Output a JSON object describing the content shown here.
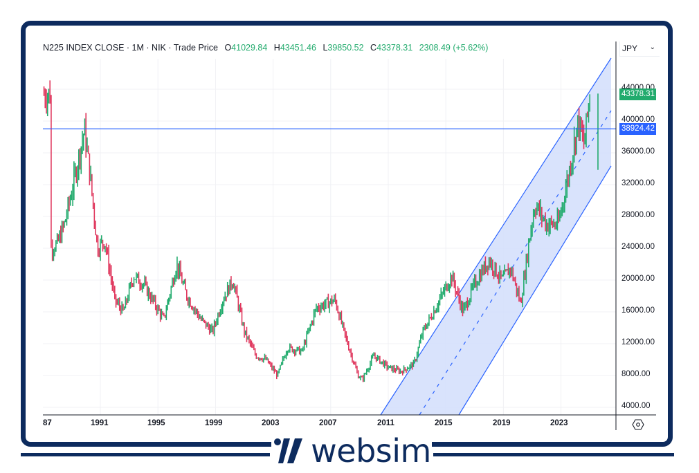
{
  "legend": {
    "symbol": "N225 INDEX CLOSE",
    "interval": "1M",
    "exchange": "NIK",
    "price_type": "Trade Price",
    "open_label": "O",
    "open": "41029.84",
    "high_label": "H",
    "high": "43451.46",
    "low_label": "L",
    "low": "39850.52",
    "close_label": "C",
    "close": "43378.31",
    "change": "2308.49 (+5.62%)"
  },
  "currency": {
    "label": "JPY",
    "chevron": "⌄"
  },
  "price_tags": {
    "last_price": "43378.31",
    "last_price_color": "#22ab6d",
    "hline_price": "38924.42",
    "hline_color": "#2962ff"
  },
  "y_axis": {
    "ticks": [
      "44000.00",
      "40000.00",
      "36000.00",
      "32000.00",
      "28000.00",
      "24000.00",
      "20000.00",
      "16000.00",
      "12000.00",
      "8000.00",
      "4000.00"
    ],
    "tick_values": [
      44000,
      40000,
      36000,
      32000,
      28000,
      24000,
      20000,
      16000,
      12000,
      8000,
      4000
    ]
  },
  "x_axis": {
    "ticks": [
      "87",
      "1991",
      "1995",
      "1999",
      "2003",
      "2007",
      "2011",
      "2015",
      "2019",
      "2023"
    ]
  },
  "brand": {
    "name": "websim"
  },
  "colors": {
    "up": "#22ab6d",
    "down": "#e0385e",
    "channel_line": "#2962ff",
    "channel_fill": "#d2defc",
    "frame": "#0d2b5e",
    "grid": "#f0f1f4"
  },
  "chart_data": {
    "type": "ohlc",
    "title": "N225 INDEX CLOSE · 1M · NIK · Trade Price",
    "xlabel": "",
    "ylabel": "JPY",
    "ylim": [
      3000,
      48000
    ],
    "x_range": [
      "1987",
      "2025"
    ],
    "grid": true,
    "series_anchor_points": {
      "year": [
        1987.5,
        1988,
        1988.5,
        1989,
        1989.9,
        1990.3,
        1990.8,
        1991.3,
        1992,
        1992.6,
        1993.3,
        1994,
        1995.4,
        1996.3,
        1997,
        1998,
        1998.8,
        1999.5,
        2000.2,
        2001,
        2001.8,
        2002.5,
        2003.3,
        2004,
        2005,
        2006,
        2007.3,
        2008,
        2008.9,
        2009.2,
        2010,
        2011,
        2011.9,
        2012.8,
        2013.4,
        2014,
        2015.4,
        2016.2,
        2017,
        2018,
        2018.9,
        2019.5,
        2020.2,
        2020.9,
        2021.2,
        2022,
        2022.8,
        2023.5,
        2024.2,
        2024.6,
        2025
      ],
      "close": [
        24000,
        24500,
        27000,
        31000,
        38916,
        33000,
        24000,
        25000,
        17500,
        16000,
        20500,
        19500,
        15000,
        22000,
        18000,
        15000,
        13500,
        17500,
        20000,
        13500,
        10500,
        10000,
        8000,
        11500,
        11000,
        16500,
        17500,
        13000,
        8000,
        7500,
        10500,
        9000,
        8500,
        9500,
        13500,
        15500,
        20500,
        16000,
        19500,
        22500,
        20000,
        21500,
        17000,
        26500,
        29500,
        27000,
        27000,
        33000,
        40000,
        37000,
        43378
      ]
    },
    "annotations": [
      {
        "type": "horizontal_line",
        "value": 38924.42,
        "label": "38924.42"
      },
      {
        "type": "parallel_channel",
        "from_year": 2010,
        "to_year": 2025.5,
        "upper_end": 48000,
        "middle_end": 41000,
        "lower_end": 34500
      }
    ],
    "last_bar": {
      "open": 41029.84,
      "high": 43451.46,
      "low": 39850.52,
      "close": 43378.31,
      "change": 2308.49,
      "change_pct": 5.62
    }
  }
}
